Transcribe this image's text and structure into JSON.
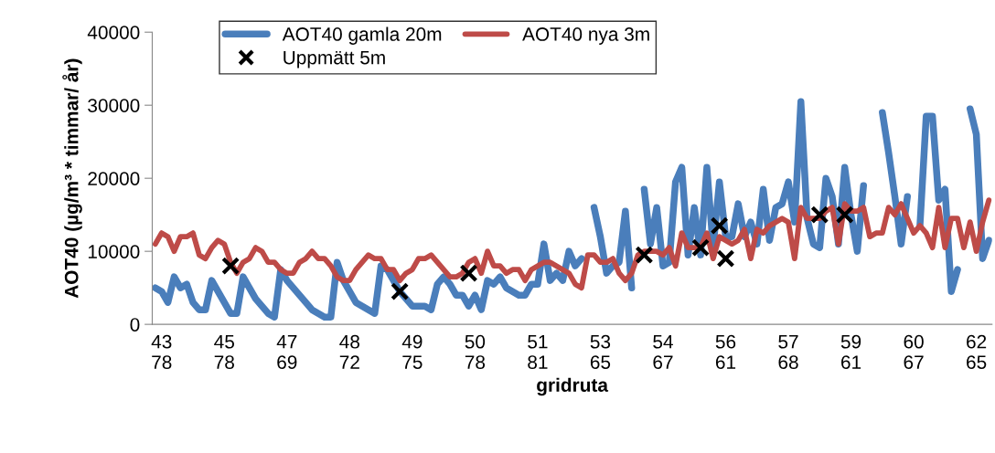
{
  "chart_data": {
    "type": "line",
    "xlabel": "gridruta",
    "ylabel": "AOT40 (µg/m³ * timmar/ år)",
    "categories": [
      null,
      "43\n78",
      null,
      null,
      null,
      null,
      null,
      null,
      null,
      null,
      null,
      "45\n78",
      null,
      null,
      null,
      null,
      null,
      null,
      null,
      null,
      null,
      "47\n69",
      null,
      null,
      null,
      null,
      null,
      null,
      null,
      null,
      null,
      "48\n72",
      null,
      null,
      null,
      null,
      null,
      null,
      null,
      null,
      null,
      "49\n75",
      null,
      null,
      null,
      null,
      null,
      null,
      null,
      null,
      null,
      "50\n78",
      null,
      null,
      null,
      null,
      null,
      null,
      null,
      null,
      null,
      "51\n81",
      null,
      null,
      null,
      null,
      null,
      null,
      null,
      null,
      null,
      "53\n65",
      null,
      null,
      null,
      null,
      null,
      null,
      null,
      null,
      null,
      "54\n67",
      null,
      null,
      null,
      null,
      null,
      null,
      null,
      null,
      null,
      "56\n61",
      null,
      null,
      null,
      null,
      null,
      null,
      null,
      null,
      null,
      "57\n68",
      null,
      null,
      null,
      null,
      null,
      null,
      null,
      null,
      null,
      "59\n61",
      null,
      null,
      null,
      null,
      null,
      null,
      null,
      null,
      null,
      "60\n67",
      null,
      null,
      null,
      null,
      null,
      null,
      null,
      null,
      null,
      "62\n65",
      null,
      null
    ],
    "ylim": [
      0,
      40000
    ],
    "yticks": [
      0,
      10000,
      20000,
      30000,
      40000
    ],
    "grid": false,
    "legend": "top",
    "marker": "none",
    "line_style": "solid",
    "series": [
      {
        "name": "AOT40 gamla 20m",
        "color": "#4a7ebb",
        "values": [
          5000,
          4500,
          3000,
          6500,
          5000,
          5500,
          3000,
          2000,
          2000,
          6000,
          4500,
          3000,
          1500,
          1500,
          6500,
          5000,
          3500,
          2500,
          1500,
          1000,
          7500,
          6000,
          5000,
          4000,
          3000,
          2000,
          1500,
          1000,
          1000,
          8500,
          6000,
          4500,
          3000,
          2500,
          2000,
          1500,
          8000,
          7500,
          6000,
          4500,
          3500,
          2500,
          2500,
          2500,
          2000,
          5500,
          6500,
          5500,
          4000,
          4000,
          2500,
          4000,
          2000,
          6000,
          5500,
          6500,
          5000,
          4500,
          4000,
          4000,
          5500,
          5500,
          11000,
          6000,
          7000,
          6000,
          10000,
          8000,
          9000,
          null,
          16000,
          12000,
          7000,
          8000,
          8500,
          15500,
          5000,
          null,
          18500,
          11000,
          16000,
          8000,
          8500,
          19500,
          21500,
          9500,
          16000,
          9500,
          21500,
          10500,
          19500,
          12000,
          12000,
          16500,
          12000,
          14000,
          11000,
          18500,
          11500,
          16000,
          16500,
          19500,
          14000,
          30500,
          14500,
          11000,
          10500,
          20000,
          17500,
          11000,
          21500,
          15000,
          10000,
          19000,
          null,
          null,
          29000,
          23500,
          17500,
          11000,
          17500,
          null,
          13500,
          28500,
          28500,
          17000,
          18500,
          4500,
          7500,
          null,
          29500,
          26000,
          9000,
          11500
        ]
      },
      {
        "name": "AOT40 nya 3m",
        "color": "#be4b48",
        "values": [
          11000,
          12500,
          12000,
          10000,
          12000,
          12000,
          12500,
          9500,
          9000,
          10500,
          11500,
          11000,
          8500,
          7000,
          8500,
          9000,
          10500,
          10000,
          8500,
          8500,
          7500,
          7000,
          7000,
          8500,
          9000,
          10000,
          9000,
          9000,
          8000,
          6500,
          6000,
          6000,
          7500,
          8500,
          9500,
          9000,
          9000,
          7500,
          7500,
          6000,
          7000,
          7500,
          9000,
          9000,
          9500,
          8500,
          7500,
          6500,
          6500,
          7000,
          8500,
          9000,
          7000,
          10000,
          8000,
          8000,
          7000,
          7500,
          7500,
          6000,
          7500,
          8000,
          8500,
          8500,
          8000,
          7500,
          7000,
          5500,
          5000,
          9500,
          9500,
          8500,
          8500,
          9000,
          7000,
          6000,
          7000,
          9500,
          10000,
          10000,
          10000,
          9500,
          10500,
          8000,
          12500,
          10500,
          10500,
          10500,
          12500,
          9000,
          12000,
          11500,
          11000,
          11500,
          13000,
          9000,
          13000,
          12500,
          13500,
          14000,
          14500,
          14000,
          9000,
          16000,
          14500,
          14500,
          14500,
          15500,
          16000,
          11000,
          16500,
          15500,
          15500,
          16000,
          12000,
          12500,
          12500,
          16000,
          15000,
          16500,
          14500,
          12500,
          13500,
          12500,
          10500,
          16000,
          10500,
          14500,
          14500,
          10500,
          14000,
          10000,
          14000,
          17000
        ]
      },
      {
        "name": "Uppmätt 5m",
        "color": "#000000",
        "type": "scatter",
        "marker": "cross",
        "values": [
          null,
          null,
          null,
          null,
          null,
          null,
          null,
          null,
          null,
          null,
          null,
          null,
          8000,
          null,
          null,
          null,
          null,
          null,
          null,
          null,
          null,
          null,
          null,
          null,
          null,
          null,
          null,
          null,
          null,
          null,
          null,
          null,
          null,
          null,
          null,
          null,
          null,
          null,
          null,
          4500,
          null,
          null,
          null,
          null,
          null,
          null,
          null,
          null,
          null,
          null,
          7000,
          null,
          null,
          null,
          null,
          null,
          null,
          null,
          null,
          null,
          null,
          null,
          null,
          null,
          null,
          null,
          null,
          null,
          null,
          null,
          null,
          null,
          null,
          null,
          null,
          null,
          null,
          null,
          9500,
          null,
          null,
          null,
          null,
          null,
          null,
          null,
          null,
          10500,
          null,
          null,
          13500,
          9000,
          null,
          null,
          null,
          null,
          null,
          null,
          null,
          null,
          null,
          null,
          null,
          null,
          null,
          null,
          15000,
          null,
          null,
          null,
          15000,
          null,
          null,
          null,
          null,
          null,
          null,
          null,
          null,
          null,
          null,
          null,
          null,
          null,
          null,
          null,
          null,
          null,
          null,
          null,
          null,
          null,
          null,
          null
        ]
      }
    ]
  }
}
